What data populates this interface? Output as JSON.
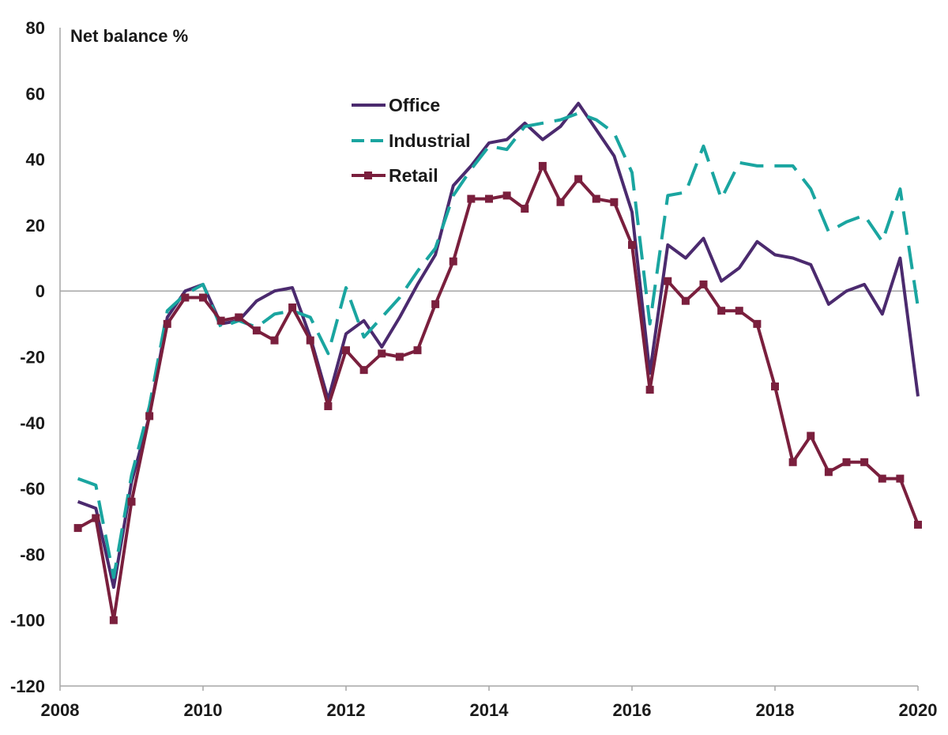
{
  "chart_data": {
    "type": "line",
    "ylabel": "Net balance %",
    "ylim": [
      -120,
      80
    ],
    "yticks": [
      80,
      60,
      40,
      20,
      0,
      -20,
      -40,
      -60,
      -80,
      -100,
      -120
    ],
    "xlim": [
      2008,
      2020
    ],
    "xticks": [
      2008,
      2010,
      2012,
      2014,
      2016,
      2018,
      2020
    ],
    "zero_line": true,
    "grid": false,
    "legend_position": "upper-center",
    "x": [
      2008.25,
      2008.5,
      2008.75,
      2009.0,
      2009.25,
      2009.5,
      2009.75,
      2010.0,
      2010.25,
      2010.5,
      2010.75,
      2011.0,
      2011.25,
      2011.5,
      2011.75,
      2012.0,
      2012.25,
      2012.5,
      2012.75,
      2013.0,
      2013.25,
      2013.5,
      2013.75,
      2014.0,
      2014.25,
      2014.5,
      2014.75,
      2015.0,
      2015.25,
      2015.5,
      2015.75,
      2016.0,
      2016.25,
      2016.5,
      2016.75,
      2017.0,
      2017.25,
      2017.5,
      2017.75,
      2018.0,
      2018.25,
      2018.5,
      2018.75,
      2019.0,
      2019.25,
      2019.5,
      2019.75,
      2020.0
    ],
    "series": [
      {
        "name": "Office",
        "color": "#4b2a6e",
        "style": "solid",
        "values": [
          -64,
          -66,
          -90,
          -58,
          -38,
          -8,
          0,
          2,
          -10,
          -9,
          -3,
          0,
          1,
          -14,
          -33,
          -13,
          -9,
          -17,
          -8,
          2,
          11,
          32,
          38,
          45,
          46,
          51,
          46,
          50,
          57,
          49,
          41,
          24,
          -25,
          14,
          10,
          16,
          3,
          7,
          15,
          11,
          10,
          8,
          -4,
          0,
          2,
          -7,
          10,
          -32
        ]
      },
      {
        "name": "Industrial",
        "color": "#1aa5a0",
        "style": "dashed",
        "values": [
          -57,
          -59,
          -87,
          -56,
          -35,
          -6,
          -1,
          2,
          -11,
          -9,
          -11,
          -7,
          -6,
          -8,
          -19,
          1,
          -14,
          -8,
          -2,
          6,
          13,
          29,
          37,
          44,
          43,
          50,
          51,
          52,
          54,
          52,
          48,
          36,
          -10,
          29,
          30,
          44,
          28,
          39,
          38,
          38,
          38,
          31,
          18,
          21,
          23,
          15,
          31,
          -5
        ]
      },
      {
        "name": "Retail",
        "color": "#7a1f3d",
        "style": "markers",
        "values": [
          -72,
          -69,
          -100,
          -64,
          -38,
          -10,
          -2,
          -2,
          -9,
          -8,
          -12,
          -15,
          -5,
          -15,
          -35,
          -18,
          -24,
          -19,
          -20,
          -18,
          -4,
          9,
          28,
          28,
          29,
          25,
          38,
          27,
          34,
          28,
          27,
          14,
          -30,
          3,
          -3,
          2,
          -6,
          -6,
          -10,
          -29,
          -52,
          -44,
          -55,
          -52,
          -52,
          -57,
          -57,
          -71
        ]
      }
    ]
  }
}
